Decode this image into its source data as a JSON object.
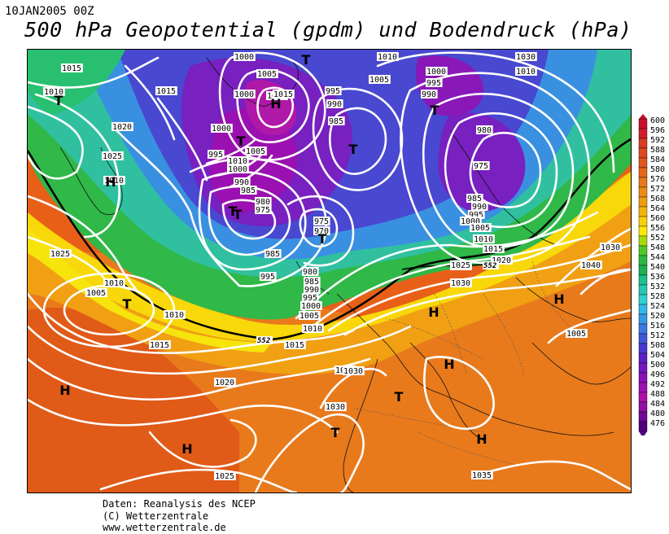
{
  "date_label": "10JAN2005 00Z",
  "title": "500 hPa Geopotential (gpdm) und Bodendruck (hPa)",
  "credits": [
    "Daten: Reanalysis des NCEP",
    "(C) Wetterzentrale",
    "www.wetterzentrale.de"
  ],
  "colorbar": {
    "levels": [
      "600",
      "596",
      "592",
      "588",
      "584",
      "580",
      "576",
      "572",
      "568",
      "564",
      "560",
      "556",
      "552",
      "548",
      "544",
      "540",
      "536",
      "532",
      "528",
      "524",
      "520",
      "516",
      "512",
      "508",
      "504",
      "500",
      "496",
      "492",
      "488",
      "484",
      "480",
      "476"
    ],
    "colors": [
      "#c8102e",
      "#d21c2a",
      "#d83a22",
      "#dc4a20",
      "#e0561c",
      "#e4681a",
      "#e8781a",
      "#ec8a16",
      "#f09c12",
      "#f4b40e",
      "#f8d00a",
      "#fce806",
      "#a8d80a",
      "#50c828",
      "#2ab83e",
      "#1cb050",
      "#1cc08c",
      "#28c8b0",
      "#30d0d0",
      "#34b8e8",
      "#3898e8",
      "#3c78e0",
      "#4058d8",
      "#4838d0",
      "#5c20c8",
      "#7418c0",
      "#8a10b8",
      "#a010b0",
      "#b010a8",
      "#9010a0",
      "#700898",
      "#500080"
    ]
  },
  "pressure_centers": [
    {
      "label": "T"
    },
    {
      "label": "H"
    },
    {
      "label": "T"
    },
    {
      "label": "T"
    },
    {
      "label": "T"
    },
    {
      "label": "T"
    },
    {
      "label": "T"
    },
    {
      "label": "H"
    },
    {
      "label": "T"
    },
    {
      "label": "T"
    },
    {
      "label": "T"
    },
    {
      "label": "H"
    },
    {
      "label": "H"
    },
    {
      "label": "H"
    },
    {
      "label": "T"
    },
    {
      "label": "T"
    },
    {
      "label": "H"
    },
    {
      "label": "H"
    },
    {
      "label": "H"
    }
  ],
  "isobar_labels": [
    "1015",
    "1010",
    "1015",
    "1020",
    "1025",
    "1010",
    "1025",
    "1005",
    "1010",
    "1010",
    "1015",
    "1020",
    "1025",
    "1030",
    "1025",
    "1000",
    "1005",
    "1010",
    "1015",
    "1000",
    "995",
    "990",
    "985",
    "1000",
    "995",
    "1010",
    "1005",
    "1000",
    "990",
    "985",
    "980",
    "975",
    "985",
    "995",
    "975",
    "970",
    "980",
    "985",
    "990",
    "995",
    "1000",
    "1005",
    "1010",
    "1015",
    "1010",
    "1005",
    "1000",
    "995",
    "990",
    "980",
    "975",
    "985",
    "990",
    "995",
    "1000",
    "1005",
    "1010",
    "1015",
    "1020",
    "1025",
    "1030",
    "1030",
    "1030",
    "1035",
    "1040",
    "1030",
    "1030",
    "1010",
    "1005"
  ],
  "height_contour_labels": [
    "552",
    "552"
  ]
}
